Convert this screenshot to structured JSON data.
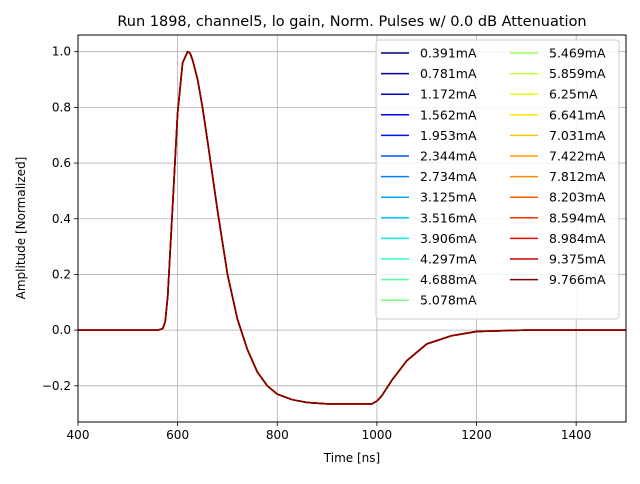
{
  "chart_data": {
    "type": "line",
    "title": "Run 1898, channel5, lo gain, Norm. Pulses w/ 0.0 dB Attenuation",
    "xlabel": "Time [ns]",
    "ylabel": "Amplitude [Normalized]",
    "xlim": [
      400,
      1500
    ],
    "ylim": [
      -0.33,
      1.06
    ],
    "xticks": [
      400,
      600,
      800,
      1000,
      1200,
      1400
    ],
    "yticks": [
      -0.2,
      0.0,
      0.2,
      0.4,
      0.6,
      0.8,
      1.0
    ],
    "ytick_labels": [
      "−0.2",
      "0.0",
      "0.2",
      "0.4",
      "0.6",
      "0.8",
      "1.0"
    ],
    "grid": true,
    "legend_position": "top-right",
    "legend_columns": 2,
    "pulse_shape": {
      "x": [
        400,
        500,
        560,
        570,
        575,
        580,
        590,
        600,
        610,
        620,
        625,
        630,
        640,
        650,
        660,
        680,
        700,
        720,
        740,
        760,
        780,
        800,
        830,
        860,
        900,
        950,
        990,
        1000,
        1010,
        1030,
        1060,
        1100,
        1150,
        1200,
        1250,
        1300,
        1400,
        1500
      ],
      "y": [
        0.0,
        0.0,
        0.0,
        0.005,
        0.03,
        0.12,
        0.45,
        0.78,
        0.96,
        1.0,
        0.995,
        0.97,
        0.9,
        0.8,
        0.68,
        0.43,
        0.2,
        0.04,
        -0.07,
        -0.15,
        -0.2,
        -0.23,
        -0.25,
        -0.26,
        -0.265,
        -0.265,
        -0.265,
        -0.255,
        -0.235,
        -0.18,
        -0.11,
        -0.05,
        -0.02,
        -0.005,
        -0.002,
        0.0,
        0.0,
        0.0
      ]
    },
    "series": [
      {
        "name": "0.391mA",
        "color": "#00007f"
      },
      {
        "name": "0.781mA",
        "color": "#00009f"
      },
      {
        "name": "1.172mA",
        "color": "#0000c8"
      },
      {
        "name": "1.562mA",
        "color": "#0000f1"
      },
      {
        "name": "1.953mA",
        "color": "#0010ff"
      },
      {
        "name": "2.344mA",
        "color": "#0050ff"
      },
      {
        "name": "2.734mA",
        "color": "#0080ff"
      },
      {
        "name": "3.125mA",
        "color": "#00a8ff"
      },
      {
        "name": "3.516mA",
        "color": "#00c8f4"
      },
      {
        "name": "3.906mA",
        "color": "#12e8e4"
      },
      {
        "name": "4.297mA",
        "color": "#33ffc4"
      },
      {
        "name": "4.688mA",
        "color": "#56ffa0"
      },
      {
        "name": "5.078mA",
        "color": "#7aff7d"
      },
      {
        "name": "5.469mA",
        "color": "#9cff5a"
      },
      {
        "name": "5.859mA",
        "color": "#beff39"
      },
      {
        "name": "6.25mA",
        "color": "#e4ff13"
      },
      {
        "name": "6.641mA",
        "color": "#ffe500"
      },
      {
        "name": "7.031mA",
        "color": "#ffc400"
      },
      {
        "name": "7.422mA",
        "color": "#ffa300"
      },
      {
        "name": "7.812mA",
        "color": "#ff8600"
      },
      {
        "name": "8.203mA",
        "color": "#ff5900"
      },
      {
        "name": "8.594mA",
        "color": "#ff3600"
      },
      {
        "name": "8.984mA",
        "color": "#f10800"
      },
      {
        "name": "9.375mA",
        "color": "#c80000"
      },
      {
        "name": "9.766mA",
        "color": "#7f0000"
      }
    ]
  }
}
